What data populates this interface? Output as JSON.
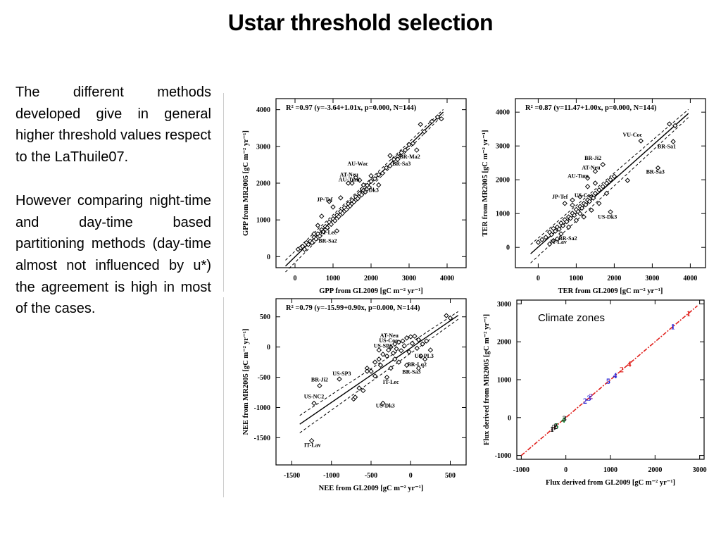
{
  "page": {
    "title": "Ustar threshold selection",
    "paragraphs": [
      "The different methods developed give in general higher threshold values respect to the LaThuile07.",
      "However comparing night-time and day-time based partitioning methods (day-time almost not influenced by u*) the agreement is high in most of the cases."
    ]
  },
  "chart_data": [
    {
      "type": "scatter",
      "id": "gpp",
      "annotation": "R² =0.97 (y=-3.64+1.01x, p=0.000, N=144)",
      "xlabel": "GPP from GL2009 [gC m⁻² yr⁻¹]",
      "ylabel": "GPP from MR2005 [gC m⁻² yr⁻¹]",
      "xlim": [
        -500,
        4500
      ],
      "ylim": [
        -300,
        4300
      ],
      "xticks": [
        0,
        1000,
        2000,
        3000,
        4000
      ],
      "yticks": [
        0,
        1000,
        2000,
        3000,
        4000
      ],
      "fit": {
        "intercept": -3.64,
        "slope": 1.01,
        "x_range": [
          -250,
          3900
        ]
      },
      "band_offset": 100,
      "labels": [
        {
          "text": "BR-Ma2",
          "x": 3020,
          "y": 2670
        },
        {
          "text": "BR-Sa3",
          "x": 2800,
          "y": 2480
        },
        {
          "text": "AU-Wac",
          "x": 1650,
          "y": 2480
        },
        {
          "text": "AT-Neu",
          "x": 1420,
          "y": 2180
        },
        {
          "text": "AU-Tum",
          "x": 1420,
          "y": 2050
        },
        {
          "text": "US-Dk3",
          "x": 1950,
          "y": 1760
        },
        {
          "text": "JP-Tef",
          "x": 780,
          "y": 1500
        },
        {
          "text": "IT-Lec",
          "x": 880,
          "y": 610
        },
        {
          "text": "BR-Sa2",
          "x": 860,
          "y": 380
        }
      ],
      "points": [
        [
          80,
          200
        ],
        [
          150,
          240
        ],
        [
          200,
          280
        ],
        [
          250,
          200
        ],
        [
          300,
          380
        ],
        [
          350,
          330
        ],
        [
          400,
          420
        ],
        [
          450,
          380
        ],
        [
          500,
          530
        ],
        [
          550,
          480
        ],
        [
          600,
          620
        ],
        [
          650,
          560
        ],
        [
          700,
          730
        ],
        [
          750,
          680
        ],
        [
          800,
          820
        ],
        [
          850,
          790
        ],
        [
          900,
          940
        ],
        [
          950,
          880
        ],
        [
          1000,
          1030
        ],
        [
          1050,
          980
        ],
        [
          1100,
          1130
        ],
        [
          1150,
          1090
        ],
        [
          1200,
          1230
        ],
        [
          1250,
          1180
        ],
        [
          1300,
          1330
        ],
        [
          1350,
          1280
        ],
        [
          1400,
          1440
        ],
        [
          1450,
          1380
        ],
        [
          1500,
          1530
        ],
        [
          1550,
          1490
        ],
        [
          1600,
          1630
        ],
        [
          1650,
          1580
        ],
        [
          1700,
          1720
        ],
        [
          1750,
          1680
        ],
        [
          1800,
          1800
        ],
        [
          1850,
          1760
        ],
        [
          1900,
          1940
        ],
        [
          1950,
          1880
        ],
        [
          2000,
          2050
        ],
        [
          2100,
          2120
        ],
        [
          2200,
          2230
        ],
        [
          2300,
          2270
        ],
        [
          2400,
          2420
        ],
        [
          2500,
          2470
        ],
        [
          2600,
          2650
        ],
        [
          2700,
          2720
        ],
        [
          2800,
          2830
        ],
        [
          2900,
          2900
        ],
        [
          3000,
          3050
        ],
        [
          3100,
          3080
        ],
        [
          3200,
          2900
        ],
        [
          3300,
          3600
        ],
        [
          3400,
          3400
        ],
        [
          3600,
          3680
        ],
        [
          3750,
          3800
        ],
        [
          3850,
          3750
        ],
        [
          1500,
          2000
        ],
        [
          1600,
          2150
        ],
        [
          1700,
          2080
        ],
        [
          1400,
          2000
        ],
        [
          1200,
          1600
        ],
        [
          1000,
          1350
        ],
        [
          900,
          1500
        ],
        [
          700,
          1100
        ],
        [
          600,
          850
        ],
        [
          500,
          620
        ],
        [
          1100,
          700
        ],
        [
          1800,
          1950
        ],
        [
          2000,
          2200
        ],
        [
          2200,
          1950
        ],
        [
          2500,
          2750
        ],
        [
          2700,
          2650
        ]
      ]
    },
    {
      "type": "scatter",
      "id": "ter",
      "annotation": "R² =0.87 (y=11.47+1.00x, p=0.000, N=144)",
      "xlabel": "TER from GL2009 [gC m⁻² yr⁻¹]",
      "ylabel": "TER from MR2005 [gC m⁻² yr⁻¹]",
      "xlim": [
        -600,
        4400
      ],
      "ylim": [
        -600,
        4400
      ],
      "xticks": [
        0,
        1000,
        2000,
        3000,
        4000
      ],
      "yticks": [
        0,
        1000,
        2000,
        3000,
        4000
      ],
      "fit": {
        "intercept": 11.47,
        "slope": 1.0,
        "x_range": [
          -200,
          3950
        ]
      },
      "band_offset": 170,
      "labels": [
        {
          "text": "VU-Coc",
          "x": 2480,
          "y": 3280
        },
        {
          "text": "BR-Sa1",
          "x": 3380,
          "y": 2930
        },
        {
          "text": "BR-Ji2",
          "x": 1440,
          "y": 2590
        },
        {
          "text": "AT-Neu",
          "x": 1390,
          "y": 2310
        },
        {
          "text": "BR-Sa3",
          "x": 3080,
          "y": 2180
        },
        {
          "text": "AU-Tum",
          "x": 1050,
          "y": 2060
        },
        {
          "text": "US-Coo",
          "x": 1200,
          "y": 1480
        },
        {
          "text": "JP-Tef",
          "x": 570,
          "y": 1440
        },
        {
          "text": "US-Dk3",
          "x": 1820,
          "y": 850
        },
        {
          "text": "BR-Sa2",
          "x": 780,
          "y": 210
        },
        {
          "text": "IT-Lav",
          "x": 530,
          "y": 110
        }
      ],
      "points": [
        [
          0,
          150
        ],
        [
          100,
          230
        ],
        [
          200,
          300
        ],
        [
          300,
          450
        ],
        [
          350,
          380
        ],
        [
          400,
          560
        ],
        [
          450,
          480
        ],
        [
          500,
          600
        ],
        [
          550,
          540
        ],
        [
          600,
          720
        ],
        [
          650,
          640
        ],
        [
          700,
          820
        ],
        [
          750,
          760
        ],
        [
          800,
          900
        ],
        [
          850,
          860
        ],
        [
          900,
          1010
        ],
        [
          950,
          950
        ],
        [
          1000,
          1120
        ],
        [
          1050,
          1060
        ],
        [
          1100,
          1210
        ],
        [
          1150,
          1160
        ],
        [
          1200,
          1300
        ],
        [
          1250,
          1260
        ],
        [
          1300,
          1400
        ],
        [
          1350,
          1360
        ],
        [
          1400,
          1500
        ],
        [
          1450,
          1460
        ],
        [
          1500,
          1600
        ],
        [
          1600,
          1700
        ],
        [
          1700,
          1800
        ],
        [
          1800,
          1900
        ],
        [
          1900,
          2000
        ],
        [
          2000,
          2100
        ],
        [
          1300,
          2050
        ],
        [
          1500,
          2250
        ],
        [
          1700,
          2450
        ],
        [
          2350,
          1980
        ],
        [
          2700,
          3150
        ],
        [
          3150,
          2350
        ],
        [
          3450,
          3650
        ],
        [
          3550,
          3130
        ],
        [
          3600,
          3600
        ],
        [
          1900,
          1050
        ],
        [
          1100,
          1500
        ],
        [
          1300,
          1800
        ],
        [
          1500,
          1900
        ],
        [
          1200,
          900
        ],
        [
          800,
          600
        ],
        [
          700,
          1300
        ],
        [
          900,
          1400
        ],
        [
          600,
          400
        ],
        [
          400,
          200
        ],
        [
          1000,
          800
        ],
        [
          1600,
          1300
        ],
        [
          1800,
          1600
        ],
        [
          1400,
          1100
        ],
        [
          900,
          1250
        ],
        [
          1100,
          1000
        ],
        [
          500,
          250
        ],
        [
          300,
          100
        ]
      ]
    },
    {
      "type": "scatter",
      "id": "nee",
      "annotation": "R² =0.79 (y=-15.99+0.90x, p=0.000, N=144)",
      "xlabel": "NEE from GL2009 [gC m⁻² yr⁻¹]",
      "ylabel": "NEE from MR2005 [gC m⁻² yr⁻¹]",
      "xlim": [
        -1700,
        700
      ],
      "ylim": [
        -1950,
        800
      ],
      "xticks": [
        -1500,
        -1000,
        -500,
        0,
        500
      ],
      "yticks": [
        500,
        0,
        -500,
        -1000,
        -1500
      ],
      "fit": {
        "intercept": -15.99,
        "slope": 0.9,
        "x_range": [
          -1400,
          600
        ]
      },
      "band_offset": 90,
      "labels": [
        {
          "text": "AT-Neu",
          "x": -270,
          "y": 160
        },
        {
          "text": "US-Coo",
          "x": -280,
          "y": 80
        },
        {
          "text": "US-SP1",
          "x": -350,
          "y": -10
        },
        {
          "text": "US-PL3",
          "x": 170,
          "y": -180
        },
        {
          "text": "BR-Lq2",
          "x": 80,
          "y": -320
        },
        {
          "text": "BR-Sa3",
          "x": 10,
          "y": -440
        },
        {
          "text": "US-SP3",
          "x": -870,
          "y": -470
        },
        {
          "text": "BR-Ji2",
          "x": -1150,
          "y": -570
        },
        {
          "text": "IT-Lec",
          "x": -250,
          "y": -610
        },
        {
          "text": "US-NC2",
          "x": -1220,
          "y": -850
        },
        {
          "text": "US-Dk3",
          "x": -320,
          "y": -1000
        },
        {
          "text": "IT-Lav",
          "x": -1240,
          "y": -1650
        }
      ],
      "points": [
        [
          -1250,
          -1550
        ],
        [
          -1220,
          -930
        ],
        [
          -1150,
          -640
        ],
        [
          -900,
          -530
        ],
        [
          -720,
          -860
        ],
        [
          -650,
          -680
        ],
        [
          -600,
          -720
        ],
        [
          -550,
          -350
        ],
        [
          -500,
          -400
        ],
        [
          -450,
          -250
        ],
        [
          -400,
          -200
        ],
        [
          -380,
          -300
        ],
        [
          -350,
          -120
        ],
        [
          -300,
          -150
        ],
        [
          -280,
          -50
        ],
        [
          -250,
          0
        ],
        [
          -220,
          -100
        ],
        [
          -200,
          50
        ],
        [
          -180,
          -30
        ],
        [
          -150,
          80
        ],
        [
          -120,
          -60
        ],
        [
          -100,
          100
        ],
        [
          -80,
          20
        ],
        [
          -50,
          150
        ],
        [
          -20,
          -80
        ],
        [
          0,
          170
        ],
        [
          20,
          60
        ],
        [
          50,
          180
        ],
        [
          80,
          -20
        ],
        [
          100,
          120
        ],
        [
          130,
          -150
        ],
        [
          150,
          50
        ],
        [
          180,
          -200
        ],
        [
          200,
          100
        ],
        [
          250,
          -50
        ],
        [
          -350,
          -930
        ],
        [
          -700,
          -830
        ],
        [
          -450,
          -480
        ],
        [
          -250,
          -350
        ],
        [
          -150,
          -250
        ],
        [
          -50,
          -300
        ],
        [
          -550,
          -400
        ],
        [
          -300,
          -500
        ],
        [
          100,
          -350
        ],
        [
          450,
          520
        ],
        [
          500,
          480
        ],
        [
          -400,
          -50
        ],
        [
          -200,
          -200
        ]
      ]
    },
    {
      "type": "scatter",
      "id": "climate",
      "annotation": "Climate zones",
      "xlabel": "Flux derived from GL2009 [gC m⁻² yr⁻¹]",
      "ylabel": "Flux derived from MR2005 [gC m⁻² yr⁻¹]",
      "xlim": [
        -1100,
        3100
      ],
      "ylim": [
        -1100,
        3100
      ],
      "xticks": [
        -1000,
        0,
        1000,
        2000,
        3000
      ],
      "yticks": [
        -1000,
        0,
        1000,
        2000,
        3000
      ],
      "line": {
        "from": [
          -1000,
          -1000
        ],
        "to": [
          2950,
          2950
        ],
        "color": "#e0201c"
      },
      "markers": [
        {
          "text": "1",
          "x": 2750,
          "y": 2750,
          "color": "#e0201c"
        },
        {
          "text": "1",
          "x": 2400,
          "y": 2400,
          "color": "#1a1ad8"
        },
        {
          "text": "4",
          "x": 1420,
          "y": 1420,
          "color": "#e0201c"
        },
        {
          "text": "2",
          "x": 1250,
          "y": 1270,
          "color": "#e0201c"
        },
        {
          "text": "4",
          "x": 1100,
          "y": 1110,
          "color": "#1a1ad8"
        },
        {
          "text": "5",
          "x": 950,
          "y": 960,
          "color": "#1a1ad8"
        },
        {
          "text": "2",
          "x": 430,
          "y": 440,
          "color": "#1a1ad8"
        },
        {
          "text": "3",
          "x": 520,
          "y": 520,
          "color": "#1a1ad8"
        },
        {
          "text": "2",
          "x": 560,
          "y": 560,
          "color": "#7a2aa8"
        },
        {
          "text": "4",
          "x": -60,
          "y": -60,
          "color": "#0a7a2a"
        },
        {
          "text": "3",
          "x": -30,
          "y": -20,
          "color": "#111111"
        },
        {
          "text": "5",
          "x": -210,
          "y": -220,
          "color": "#0a7a2a"
        },
        {
          "text": "1",
          "x": -310,
          "y": -300,
          "color": "#111111"
        },
        {
          "text": "3",
          "x": -270,
          "y": -250,
          "color": "#111111"
        },
        {
          "text": "2",
          "x": -230,
          "y": -230,
          "color": "#111111"
        }
      ]
    }
  ]
}
